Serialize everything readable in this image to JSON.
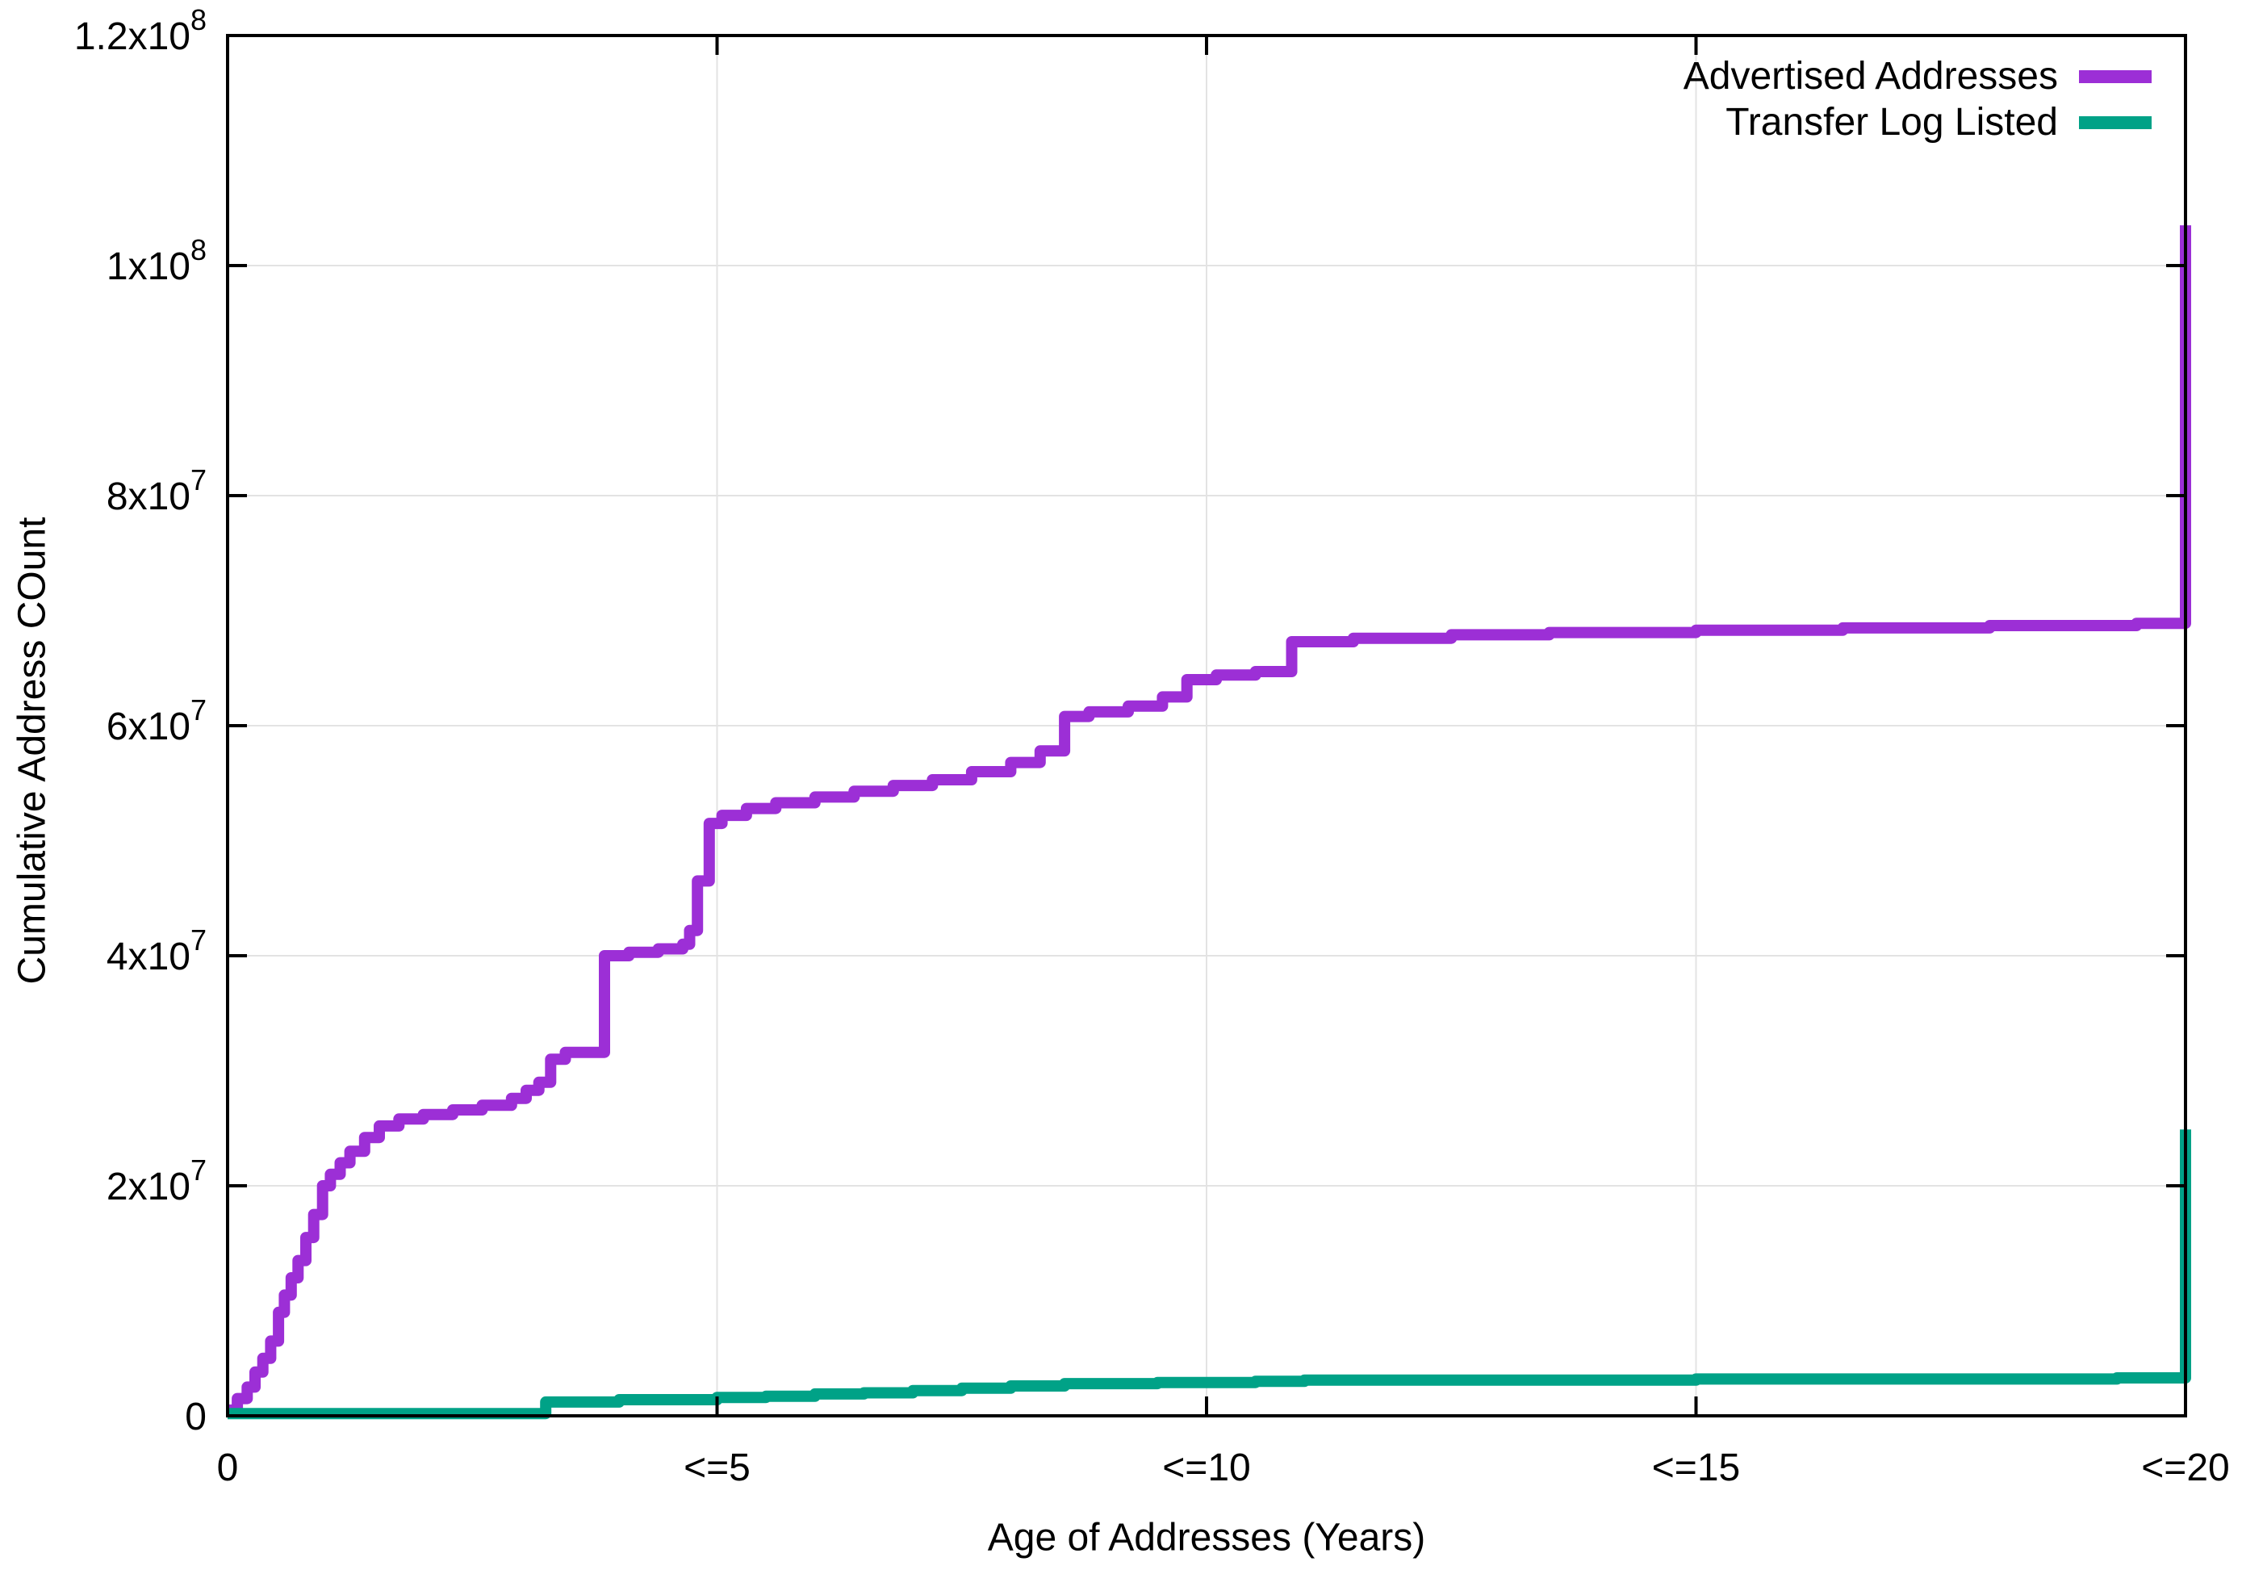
{
  "chart_data": {
    "type": "line",
    "title": "",
    "xlabel": "Age of Addresses (Years)",
    "ylabel": "Cumulative Address COunt",
    "xlim": [
      0,
      20
    ],
    "ylim": [
      0,
      120000000
    ],
    "grid": true,
    "step_mode": "step-after",
    "legend_position": "top-right-inside",
    "colors": {
      "background": "#ffffff",
      "axis": "#000000",
      "grid": "#e3e3e3"
    },
    "x_ticks": [
      {
        "v": 0,
        "label": "0"
      },
      {
        "v": 5,
        "label": "<=5"
      },
      {
        "v": 10,
        "label": "<=10"
      },
      {
        "v": 15,
        "label": "<=15"
      },
      {
        "v": 20,
        "label": "<=20"
      }
    ],
    "y_ticks": [
      {
        "v": 0,
        "base": "0",
        "sup": ""
      },
      {
        "v": 20000000,
        "base": "2x10",
        "sup": "7"
      },
      {
        "v": 40000000,
        "base": "4x10",
        "sup": "7"
      },
      {
        "v": 60000000,
        "base": "6x10",
        "sup": "7"
      },
      {
        "v": 80000000,
        "base": "8x10",
        "sup": "7"
      },
      {
        "v": 100000000,
        "base": "1x10",
        "sup": "8"
      },
      {
        "v": 120000000,
        "base": "1.2x10",
        "sup": "8"
      }
    ],
    "series": [
      {
        "name": "Advertised Addresses",
        "color": "#9c2fd6",
        "points": [
          [
            0,
            500000
          ],
          [
            0.1,
            1500000
          ],
          [
            0.2,
            2500000
          ],
          [
            0.28,
            3800000
          ],
          [
            0.36,
            5000000
          ],
          [
            0.44,
            6500000
          ],
          [
            0.52,
            9000000
          ],
          [
            0.58,
            10500000
          ],
          [
            0.65,
            12000000
          ],
          [
            0.72,
            13500000
          ],
          [
            0.8,
            15500000
          ],
          [
            0.88,
            17500000
          ],
          [
            0.97,
            20000000
          ],
          [
            1.05,
            21000000
          ],
          [
            1.15,
            22000000
          ],
          [
            1.25,
            23000000
          ],
          [
            1.4,
            24200000
          ],
          [
            1.55,
            25200000
          ],
          [
            1.75,
            25800000
          ],
          [
            2.0,
            26200000
          ],
          [
            2.3,
            26600000
          ],
          [
            2.6,
            27000000
          ],
          [
            2.9,
            27600000
          ],
          [
            3.05,
            28300000
          ],
          [
            3.18,
            29000000
          ],
          [
            3.3,
            31000000
          ],
          [
            3.45,
            31600000
          ],
          [
            3.85,
            40000000
          ],
          [
            4.1,
            40300000
          ],
          [
            4.4,
            40600000
          ],
          [
            4.65,
            41000000
          ],
          [
            4.72,
            42200000
          ],
          [
            4.8,
            46500000
          ],
          [
            4.92,
            51500000
          ],
          [
            5.05,
            52200000
          ],
          [
            5.3,
            52800000
          ],
          [
            5.6,
            53300000
          ],
          [
            6.0,
            53800000
          ],
          [
            6.4,
            54300000
          ],
          [
            6.8,
            54800000
          ],
          [
            7.2,
            55300000
          ],
          [
            7.6,
            56000000
          ],
          [
            8.0,
            56800000
          ],
          [
            8.3,
            57800000
          ],
          [
            8.55,
            60800000
          ],
          [
            8.8,
            61200000
          ],
          [
            9.2,
            61700000
          ],
          [
            9.55,
            62500000
          ],
          [
            9.8,
            64000000
          ],
          [
            10.1,
            64400000
          ],
          [
            10.5,
            64700000
          ],
          [
            10.87,
            67300000
          ],
          [
            11.5,
            67600000
          ],
          [
            12.5,
            67900000
          ],
          [
            13.5,
            68100000
          ],
          [
            15.0,
            68300000
          ],
          [
            16.5,
            68500000
          ],
          [
            18.0,
            68700000
          ],
          [
            19.5,
            68900000
          ],
          [
            20.0,
            103500000
          ]
        ]
      },
      {
        "name": "Transfer Log Listed",
        "color": "#00a287",
        "points": [
          [
            0,
            200000
          ],
          [
            3.25,
            1200000
          ],
          [
            4.0,
            1400000
          ],
          [
            5.0,
            1600000
          ],
          [
            5.5,
            1700000
          ],
          [
            6.0,
            1900000
          ],
          [
            6.5,
            2000000
          ],
          [
            7.0,
            2200000
          ],
          [
            7.5,
            2400000
          ],
          [
            8.0,
            2600000
          ],
          [
            8.55,
            2800000
          ],
          [
            9.5,
            2900000
          ],
          [
            10.5,
            3000000
          ],
          [
            11.0,
            3100000
          ],
          [
            13.0,
            3100000
          ],
          [
            15.0,
            3200000
          ],
          [
            17.5,
            3200000
          ],
          [
            19.3,
            3300000
          ],
          [
            20.0,
            24900000
          ]
        ]
      }
    ]
  }
}
